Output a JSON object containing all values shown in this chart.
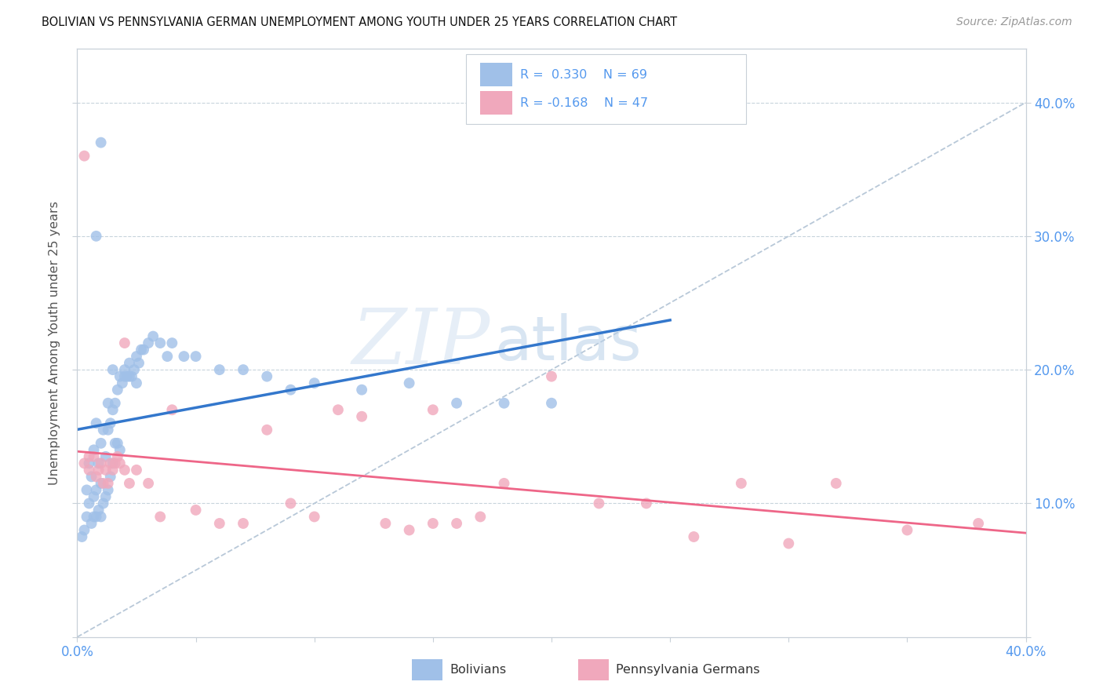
{
  "title": "BOLIVIAN VS PENNSYLVANIA GERMAN UNEMPLOYMENT AMONG YOUTH UNDER 25 YEARS CORRELATION CHART",
  "source": "Source: ZipAtlas.com",
  "ylabel": "Unemployment Among Youth under 25 years",
  "xlim": [
    0.0,
    0.4
  ],
  "ylim": [
    0.0,
    0.44
  ],
  "blue_color": "#a0c0e8",
  "pink_color": "#f0a8bc",
  "blue_line_color": "#3377cc",
  "pink_line_color": "#ee6688",
  "diagonal_color": "#b8c8d8",
  "R_blue": 0.33,
  "N_blue": 69,
  "R_pink": -0.168,
  "N_pink": 47,
  "tick_color": "#5599ee",
  "watermark_zip": "ZIP",
  "watermark_atlas": "atlas",
  "grid_color": "#c8d4dc",
  "spine_color": "#c8d0d8",
  "blue_x": [
    0.002,
    0.003,
    0.004,
    0.004,
    0.005,
    0.005,
    0.006,
    0.006,
    0.007,
    0.007,
    0.007,
    0.008,
    0.008,
    0.008,
    0.009,
    0.009,
    0.01,
    0.01,
    0.01,
    0.011,
    0.011,
    0.012,
    0.012,
    0.013,
    0.013,
    0.013,
    0.014,
    0.014,
    0.015,
    0.015,
    0.015,
    0.016,
    0.016,
    0.017,
    0.017,
    0.018,
    0.018,
    0.019,
    0.02,
    0.02,
    0.021,
    0.022,
    0.022,
    0.023,
    0.024,
    0.025,
    0.025,
    0.026,
    0.027,
    0.028,
    0.03,
    0.032,
    0.035,
    0.038,
    0.04,
    0.045,
    0.05,
    0.06,
    0.07,
    0.08,
    0.09,
    0.1,
    0.12,
    0.14,
    0.16,
    0.18,
    0.2,
    0.01,
    0.008
  ],
  "blue_y": [
    0.075,
    0.08,
    0.09,
    0.11,
    0.1,
    0.13,
    0.085,
    0.12,
    0.09,
    0.105,
    0.14,
    0.09,
    0.11,
    0.16,
    0.095,
    0.13,
    0.09,
    0.115,
    0.145,
    0.1,
    0.155,
    0.105,
    0.135,
    0.11,
    0.155,
    0.175,
    0.12,
    0.16,
    0.13,
    0.17,
    0.2,
    0.145,
    0.175,
    0.145,
    0.185,
    0.14,
    0.195,
    0.19,
    0.195,
    0.2,
    0.195,
    0.195,
    0.205,
    0.195,
    0.2,
    0.19,
    0.21,
    0.205,
    0.215,
    0.215,
    0.22,
    0.225,
    0.22,
    0.21,
    0.22,
    0.21,
    0.21,
    0.2,
    0.2,
    0.195,
    0.185,
    0.19,
    0.185,
    0.19,
    0.175,
    0.175,
    0.175,
    0.37,
    0.3
  ],
  "pink_x": [
    0.003,
    0.005,
    0.007,
    0.008,
    0.009,
    0.01,
    0.011,
    0.012,
    0.013,
    0.014,
    0.015,
    0.016,
    0.017,
    0.018,
    0.02,
    0.022,
    0.025,
    0.03,
    0.035,
    0.04,
    0.05,
    0.06,
    0.07,
    0.08,
    0.09,
    0.1,
    0.11,
    0.12,
    0.13,
    0.14,
    0.15,
    0.16,
    0.17,
    0.18,
    0.2,
    0.22,
    0.24,
    0.26,
    0.28,
    0.3,
    0.32,
    0.35,
    0.38,
    0.15,
    0.02,
    0.005,
    0.003
  ],
  "pink_y": [
    0.13,
    0.125,
    0.135,
    0.12,
    0.125,
    0.13,
    0.115,
    0.125,
    0.115,
    0.13,
    0.125,
    0.13,
    0.135,
    0.13,
    0.125,
    0.115,
    0.125,
    0.115,
    0.09,
    0.17,
    0.095,
    0.085,
    0.085,
    0.155,
    0.1,
    0.09,
    0.17,
    0.165,
    0.085,
    0.08,
    0.17,
    0.085,
    0.09,
    0.115,
    0.195,
    0.1,
    0.1,
    0.075,
    0.115,
    0.07,
    0.115,
    0.08,
    0.085,
    0.085,
    0.22,
    0.135,
    0.36
  ]
}
